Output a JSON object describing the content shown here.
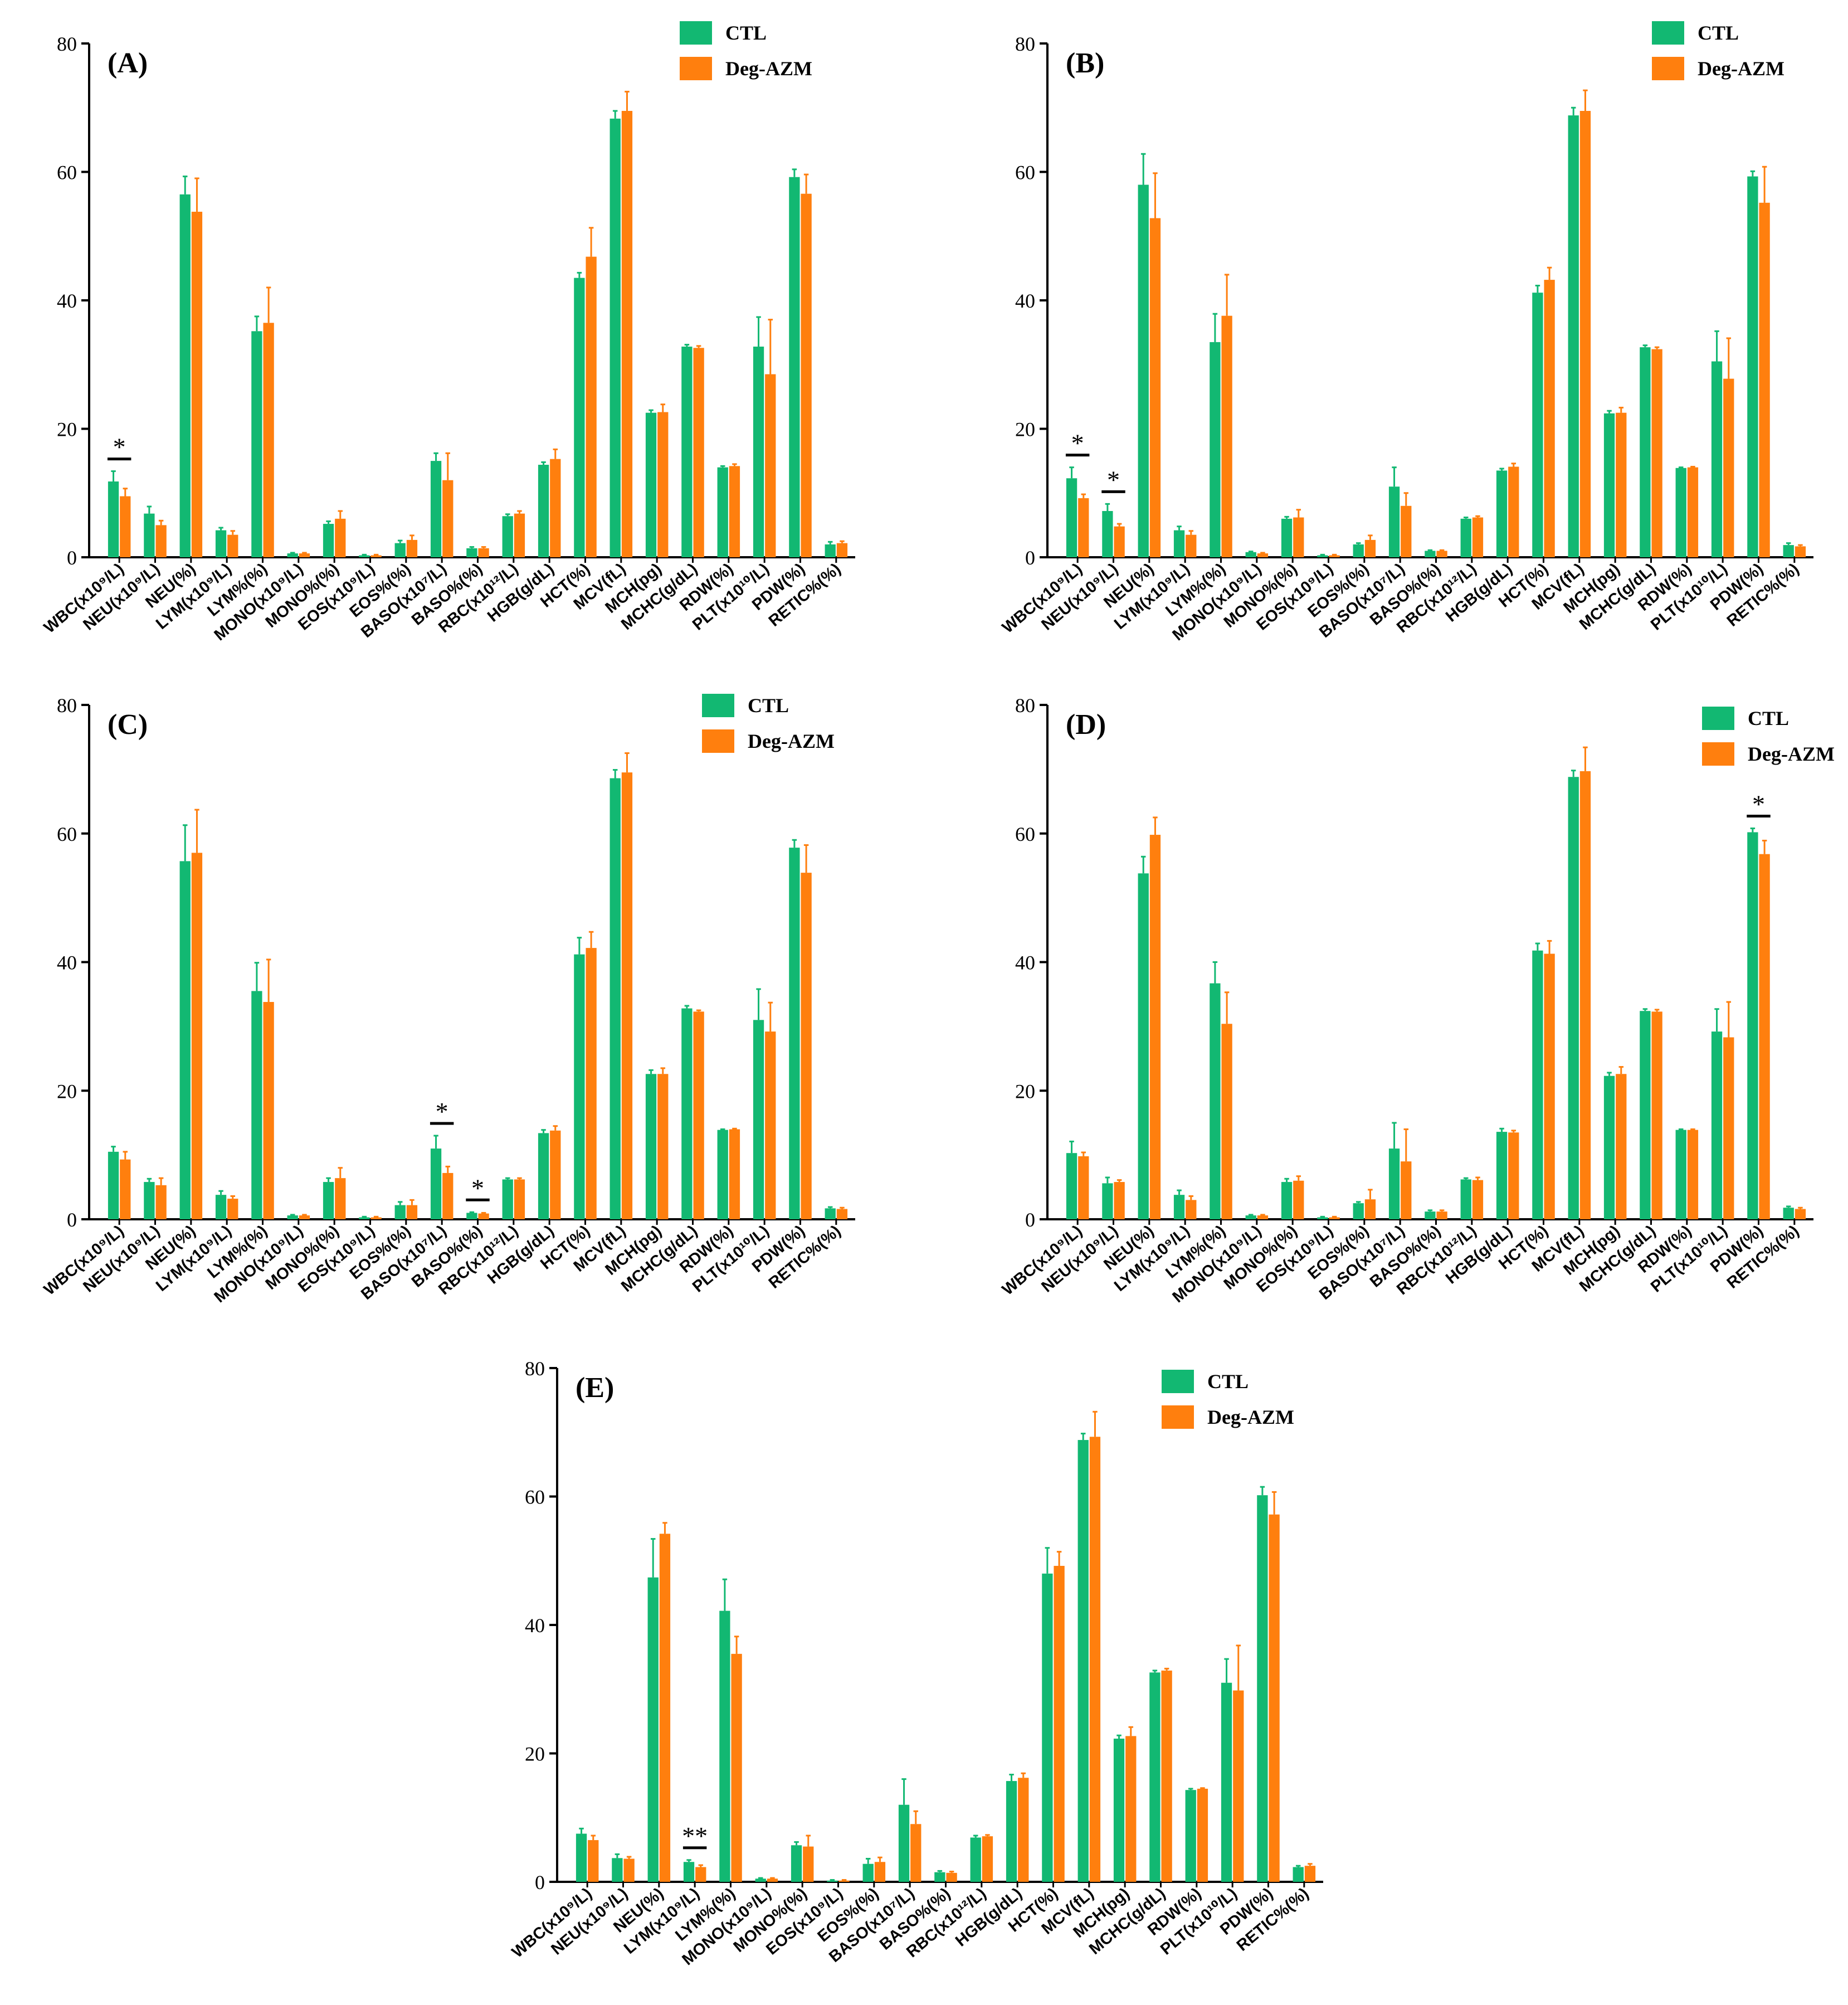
{
  "colors": {
    "ctl": "#12B872",
    "deg": "#FF7F0E",
    "axis": "#000000"
  },
  "chart_data": [
    {
      "type": "bar",
      "panel": "(A)",
      "categories": [
        "WBC(x10⁹/L)",
        "NEU(x10⁹/L)",
        "NEU(%)",
        "LYM(x10⁹/L)",
        "LYM%(%)",
        "MONO(x10⁹/L)",
        "MONO%(%)",
        "EOS(x10⁹/L)",
        "EOS%(%)",
        "BASO(x10⁷/L)",
        "BASO%(%)",
        "RBC(x10¹²/L)",
        "HGB(g/dL)",
        "HCT(%)",
        "MCV(fL)",
        "MCH(pg)",
        "MCHC(g/dL)",
        "RDW(%)",
        "PLT(x10¹⁰/L)",
        "PDW(%)",
        "RETIC%(%)"
      ],
      "series": [
        {
          "name": "CTL",
          "values": [
            11.8,
            6.8,
            56.5,
            4.2,
            35.2,
            0.6,
            5.2,
            0.3,
            2.2,
            15.0,
            1.4,
            6.4,
            14.4,
            43.5,
            68.3,
            22.5,
            32.8,
            14.0,
            32.8,
            59.2,
            2.0
          ],
          "errors": [
            1.6,
            1.1,
            2.8,
            0.4,
            2.3,
            0.1,
            0.4,
            0.1,
            0.4,
            1.2,
            0.2,
            0.3,
            0.4,
            0.8,
            1.2,
            0.4,
            0.3,
            0.2,
            4.6,
            1.2,
            0.4
          ]
        },
        {
          "name": "Deg-AZM",
          "values": [
            9.5,
            5.0,
            53.8,
            3.5,
            36.5,
            0.6,
            6.0,
            0.3,
            2.7,
            12.0,
            1.4,
            6.8,
            15.3,
            46.8,
            69.5,
            22.6,
            32.6,
            14.2,
            28.5,
            56.6,
            2.2
          ],
          "errors": [
            1.2,
            0.7,
            5.2,
            0.6,
            5.5,
            0.1,
            1.2,
            0.1,
            0.7,
            4.2,
            0.2,
            0.4,
            1.5,
            4.5,
            3.0,
            1.2,
            0.3,
            0.3,
            8.5,
            3.0,
            0.3
          ]
        }
      ],
      "significance": [
        {
          "category": "WBC(x10⁹/L)",
          "label": "*"
        }
      ],
      "ylim": [
        0,
        80
      ],
      "yticks": [
        "0",
        "20",
        "40",
        "60",
        "80"
      ],
      "legend_position": "top-right"
    },
    {
      "type": "bar",
      "panel": "(B)",
      "categories": [
        "WBC(x10⁹/L)",
        "NEU(x10⁹/L)",
        "NEU(%)",
        "LYM(x10⁹/L)",
        "LYM%(%)",
        "MONO(x10⁹/L)",
        "MONO%(%)",
        "EOS(x10⁹/L)",
        "EOS%(%)",
        "BASO(x10⁷/L)",
        "BASO%(%)",
        "RBC(x10¹²/L)",
        "HGB(g/dL)",
        "HCT(%)",
        "MCV(fL)",
        "MCH(pg)",
        "MCHC(g/dL)",
        "RDW(%)",
        "PLT(x10¹⁰/L)",
        "PDW(%)",
        "RETIC%(%)"
      ],
      "series": [
        {
          "name": "CTL",
          "values": [
            12.3,
            7.2,
            58.0,
            4.2,
            33.5,
            0.8,
            6.0,
            0.3,
            2.0,
            11.0,
            1.0,
            6.0,
            13.5,
            41.2,
            68.8,
            22.4,
            32.7,
            13.9,
            30.5,
            59.3,
            1.9
          ],
          "errors": [
            1.7,
            1.1,
            4.8,
            0.6,
            4.4,
            0.1,
            0.3,
            0.1,
            0.2,
            3.0,
            0.1,
            0.2,
            0.3,
            1.1,
            1.2,
            0.4,
            0.3,
            0.1,
            4.7,
            0.8,
            0.3
          ]
        },
        {
          "name": "Deg-AZM",
          "values": [
            9.2,
            4.8,
            52.8,
            3.5,
            37.6,
            0.6,
            6.2,
            0.3,
            2.7,
            8.0,
            1.0,
            6.2,
            14.1,
            43.2,
            69.5,
            22.5,
            32.4,
            14.0,
            27.8,
            55.2,
            1.7
          ],
          "errors": [
            0.6,
            0.4,
            7.0,
            0.6,
            6.4,
            0.1,
            1.2,
            0.1,
            0.7,
            2.0,
            0.1,
            0.2,
            0.5,
            1.9,
            3.2,
            0.8,
            0.3,
            0.1,
            6.3,
            5.6,
            0.2
          ]
        }
      ],
      "significance": [
        {
          "category": "WBC(x10⁹/L)",
          "label": "*"
        },
        {
          "category": "NEU(x10⁹/L)",
          "label": "*"
        }
      ],
      "ylim": [
        0,
        80
      ],
      "yticks": [
        "0",
        "20",
        "40",
        "60",
        "80"
      ],
      "legend_position": "top-right"
    },
    {
      "type": "bar",
      "panel": "(C)",
      "categories": [
        "WBC(x10⁹/L)",
        "NEU(x10⁹/L)",
        "NEU(%)",
        "LYM(x10⁹/L)",
        "LYM%(%)",
        "MONO(x10⁹/L)",
        "MONO%(%)",
        "EOS(x10⁹/L)",
        "EOS%(%)",
        "BASO(x10⁷/L)",
        "BASO%(%)",
        "RBC(x10¹²/L)",
        "HGB(g/dL)",
        "HCT(%)",
        "MCV(fL)",
        "MCH(pg)",
        "MCHC(g/dL)",
        "RDW(%)",
        "PLT(x10¹⁰/L)",
        "PDW(%)",
        "RETIC%(%)"
      ],
      "series": [
        {
          "name": "CTL",
          "values": [
            10.5,
            5.8,
            55.7,
            3.8,
            35.5,
            0.6,
            5.8,
            0.3,
            2.2,
            11.0,
            1.0,
            6.2,
            13.4,
            41.2,
            68.6,
            22.6,
            32.8,
            13.9,
            31.0,
            57.8,
            1.7
          ],
          "errors": [
            0.8,
            0.5,
            5.6,
            0.6,
            4.4,
            0.1,
            0.6,
            0.1,
            0.5,
            2.0,
            0.1,
            0.2,
            0.5,
            2.6,
            1.3,
            0.6,
            0.4,
            0.1,
            4.8,
            1.2,
            0.2
          ]
        },
        {
          "name": "Deg-AZM",
          "values": [
            9.3,
            5.3,
            57.0,
            3.2,
            33.8,
            0.6,
            6.4,
            0.3,
            2.2,
            7.2,
            0.9,
            6.2,
            13.8,
            42.2,
            69.5,
            22.6,
            32.3,
            14.0,
            29.2,
            53.9,
            1.6
          ],
          "errors": [
            1.2,
            1.1,
            6.7,
            0.4,
            6.6,
            0.1,
            1.6,
            0.1,
            0.8,
            1.0,
            0.1,
            0.2,
            0.7,
            2.5,
            3.0,
            0.9,
            0.2,
            0.1,
            4.5,
            4.3,
            0.2
          ]
        }
      ],
      "significance": [
        {
          "category": "BASO(x10⁷/L)",
          "label": "*"
        },
        {
          "category": "BASO%(%)",
          "label": "*"
        }
      ],
      "ylim": [
        0,
        80
      ],
      "yticks": [
        "0",
        "20",
        "40",
        "60",
        "80"
      ],
      "legend_position": "top-right"
    },
    {
      "type": "bar",
      "panel": "(D)",
      "categories": [
        "WBC(x10⁹/L)",
        "NEU(x10⁹/L)",
        "NEU(%)",
        "LYM(x10⁹/L)",
        "LYM%(%)",
        "MONO(x10⁹/L)",
        "MONO%(%)",
        "EOS(x10⁹/L)",
        "EOS%(%)",
        "BASO(x10⁷/L)",
        "BASO%(%)",
        "RBC(x10¹²/L)",
        "HGB(g/dL)",
        "HCT(%)",
        "MCV(fL)",
        "MCH(pg)",
        "MCHC(g/dL)",
        "RDW(%)",
        "PLT(x10¹⁰/L)",
        "PDW(%)",
        "RETIC%(%)"
      ],
      "series": [
        {
          "name": "CTL",
          "values": [
            10.3,
            5.6,
            53.8,
            3.8,
            36.7,
            0.6,
            5.8,
            0.3,
            2.5,
            11.0,
            1.2,
            6.2,
            13.6,
            41.8,
            68.8,
            22.3,
            32.4,
            13.9,
            29.2,
            60.2,
            1.8
          ],
          "errors": [
            1.8,
            0.9,
            2.6,
            0.7,
            3.3,
            0.1,
            0.5,
            0.1,
            0.2,
            4.0,
            0.2,
            0.2,
            0.5,
            1.1,
            1.0,
            0.5,
            0.3,
            0.1,
            3.5,
            0.6,
            0.2
          ]
        },
        {
          "name": "Deg-AZM",
          "values": [
            9.8,
            5.8,
            59.8,
            3.0,
            30.4,
            0.6,
            6.0,
            0.3,
            3.1,
            9.0,
            1.2,
            6.1,
            13.5,
            41.3,
            69.7,
            22.6,
            32.3,
            13.9,
            28.3,
            56.8,
            1.6
          ],
          "errors": [
            0.6,
            0.3,
            2.7,
            0.6,
            4.9,
            0.1,
            0.7,
            0.1,
            1.5,
            5.0,
            0.2,
            0.4,
            0.3,
            2.0,
            3.7,
            1.1,
            0.3,
            0.1,
            5.5,
            2.1,
            0.2
          ]
        }
      ],
      "significance": [
        {
          "category": "PDW(%)",
          "label": "*"
        }
      ],
      "ylim": [
        0,
        80
      ],
      "yticks": [
        "0",
        "20",
        "40",
        "60",
        "80"
      ],
      "legend_position": "top-right"
    },
    {
      "type": "bar",
      "panel": "(E)",
      "categories": [
        "WBC(x10⁹/L)",
        "NEU(x10⁹/L)",
        "NEU(%)",
        "LYM(x10⁹/L)",
        "LYM%(%)",
        "MONO(x10⁹/L)",
        "MONO%(%)",
        "EOS(x10⁹/L)",
        "EOS%(%)",
        "BASO(x10⁷/L)",
        "BASO%(%)",
        "RBC(x10¹²/L)",
        "HGB(g/dL)",
        "HCT(%)",
        "MCV(fL)",
        "MCH(pg)",
        "MCHC(g/dL)",
        "RDW(%)",
        "PLT(x10¹⁰/L)",
        "PDW(%)",
        "RETIC%(%)"
      ],
      "series": [
        {
          "name": "CTL",
          "values": [
            7.5,
            3.7,
            47.4,
            3.1,
            42.2,
            0.5,
            5.7,
            0.2,
            2.8,
            12.0,
            1.5,
            6.9,
            15.7,
            48.0,
            68.8,
            22.3,
            32.6,
            14.3,
            31.0,
            60.2,
            2.3
          ],
          "errors": [
            0.8,
            0.6,
            6.0,
            0.3,
            4.9,
            0.1,
            0.5,
            0.1,
            0.8,
            4.0,
            0.2,
            0.3,
            1.0,
            4.0,
            1.0,
            0.5,
            0.3,
            0.2,
            3.7,
            1.3,
            0.2
          ]
        },
        {
          "name": "Deg-AZM",
          "values": [
            6.5,
            3.6,
            54.2,
            2.3,
            35.5,
            0.5,
            5.5,
            0.2,
            3.1,
            9.0,
            1.4,
            7.1,
            16.2,
            49.2,
            69.3,
            22.7,
            32.9,
            14.5,
            29.8,
            57.2,
            2.5
          ],
          "errors": [
            0.7,
            0.3,
            1.7,
            0.3,
            2.7,
            0.1,
            1.7,
            0.1,
            0.7,
            2.0,
            0.2,
            0.2,
            0.7,
            2.2,
            3.9,
            1.4,
            0.3,
            0.1,
            7.0,
            3.5,
            0.3
          ]
        }
      ],
      "significance": [
        {
          "category": "LYM(x10⁹/L)",
          "label": "**"
        }
      ],
      "ylim": [
        0,
        80
      ],
      "yticks": [
        "0",
        "20",
        "40",
        "60",
        "80"
      ],
      "legend_position": "top-right"
    }
  ]
}
